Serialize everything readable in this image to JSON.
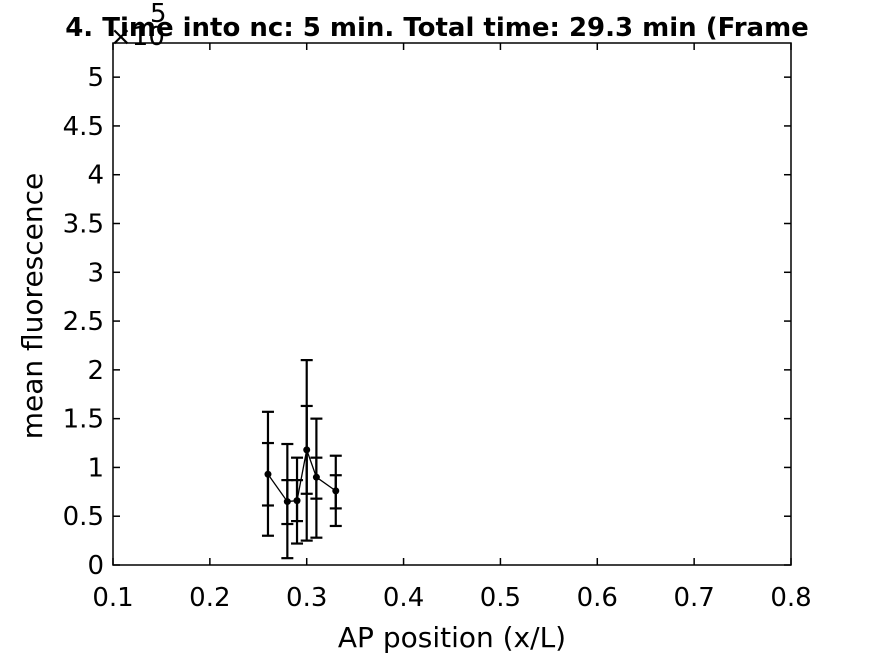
{
  "chart_data": {
    "type": "scatter",
    "title": "4. Time into nc: 5 min. Total time: 29.3 min (Frame",
    "xlabel": "AP position (x/L)",
    "ylabel": "mean fluorescence",
    "y_exponent_label": "×10",
    "y_exponent_power": "5",
    "xlim": [
      0.1,
      0.8
    ],
    "ylim": [
      0,
      5.35
    ],
    "x_ticks": [
      0.1,
      0.2,
      0.3,
      0.4,
      0.5,
      0.6,
      0.7,
      0.8
    ],
    "x_tick_labels": [
      "0.1",
      "0.2",
      "0.3",
      "0.4",
      "0.5",
      "0.6",
      "0.7",
      "0.8"
    ],
    "y_ticks": [
      0,
      0.5,
      1,
      1.5,
      2,
      2.5,
      3,
      3.5,
      4,
      4.5,
      5
    ],
    "y_tick_labels": [
      "0",
      "0.5",
      "1",
      "1.5",
      "2",
      "2.5",
      "3",
      "3.5",
      "4",
      "4.5",
      "5"
    ],
    "grid": false,
    "series": [
      {
        "color": "#000000",
        "points": [
          {
            "x": 0.26,
            "y": 0.93,
            "errors": [
              {
                "lo": 0.61,
                "hi": 1.25
              },
              {
                "lo": 0.3,
                "hi": 1.57
              }
            ]
          },
          {
            "x": 0.28,
            "y": 0.65,
            "errors": [
              {
                "lo": 0.42,
                "hi": 0.87
              },
              {
                "lo": 0.07,
                "hi": 1.24
              }
            ]
          },
          {
            "x": 0.29,
            "y": 0.66,
            "errors": [
              {
                "lo": 0.45,
                "hi": 0.87
              },
              {
                "lo": 0.22,
                "hi": 1.1
              }
            ]
          },
          {
            "x": 0.3,
            "y": 1.18,
            "errors": [
              {
                "lo": 0.73,
                "hi": 1.63
              },
              {
                "lo": 0.25,
                "hi": 2.1
              }
            ]
          },
          {
            "x": 0.31,
            "y": 0.9,
            "errors": [
              {
                "lo": 0.68,
                "hi": 1.1
              },
              {
                "lo": 0.28,
                "hi": 1.5
              }
            ]
          },
          {
            "x": 0.33,
            "y": 0.76,
            "errors": [
              {
                "lo": 0.58,
                "hi": 0.92
              },
              {
                "lo": 0.4,
                "hi": 1.12
              }
            ]
          }
        ]
      }
    ]
  }
}
